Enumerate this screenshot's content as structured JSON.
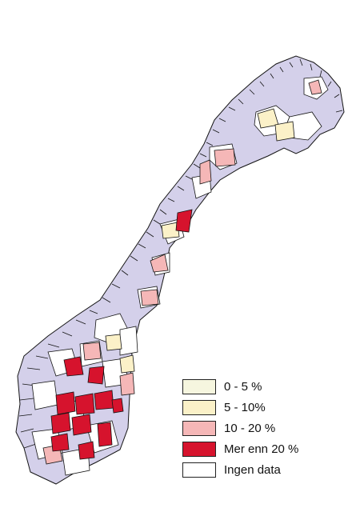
{
  "colors": {
    "land": "#d4d0ea",
    "border": "#141414",
    "municipality_fill_default": "#ffffff"
  },
  "legend": {
    "items": [
      {
        "label": "0 - 5 %",
        "color": "#f6f6df"
      },
      {
        "label": "5 - 10%",
        "color": "#fbf1c8"
      },
      {
        "label": "10 - 20 %",
        "color": "#f5b7b7"
      },
      {
        "label": "Mer enn 20 %",
        "color": "#d6132d"
      },
      {
        "label": "Ingen data",
        "color": "#ffffff"
      }
    ]
  }
}
